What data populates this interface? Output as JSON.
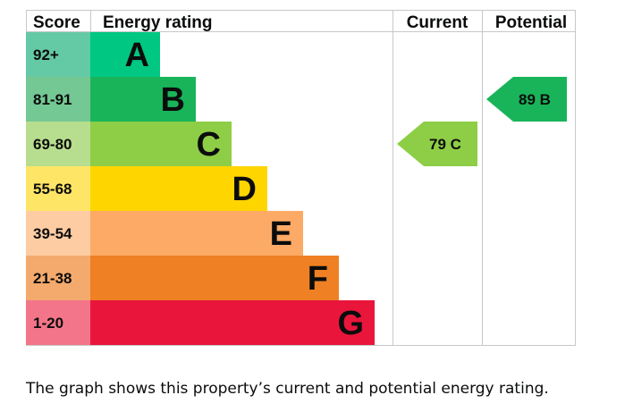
{
  "chart_data": {
    "type": "bar",
    "headers": {
      "score": "Score",
      "rating": "Energy rating",
      "current": "Current",
      "potential": "Potential"
    },
    "bands": [
      {
        "score": "92+",
        "letter": "A",
        "color": "#00c781",
        "score_bg": "#64c9a5"
      },
      {
        "score": "81-91",
        "letter": "B",
        "color": "#19b459",
        "score_bg": "#74c893"
      },
      {
        "score": "69-80",
        "letter": "C",
        "color": "#8dce46",
        "score_bg": "#b7de8e"
      },
      {
        "score": "55-68",
        "letter": "D",
        "color": "#ffd500",
        "score_bg": "#ffe566"
      },
      {
        "score": "39-54",
        "letter": "E",
        "color": "#fcaa65",
        "score_bg": "#fdcca3"
      },
      {
        "score": "21-38",
        "letter": "F",
        "color": "#ef8023",
        "score_bg": "#f4aa6d"
      },
      {
        "score": "1-20",
        "letter": "G",
        "color": "#e9153b",
        "score_bg": "#f37589"
      }
    ],
    "current": {
      "value": 79,
      "letter": "C",
      "label": "79 C",
      "color": "#8dce46"
    },
    "potential": {
      "value": 89,
      "letter": "B",
      "label": "89 B",
      "color": "#19b459"
    }
  },
  "caption": "The graph shows this property’s current and potential energy rating."
}
